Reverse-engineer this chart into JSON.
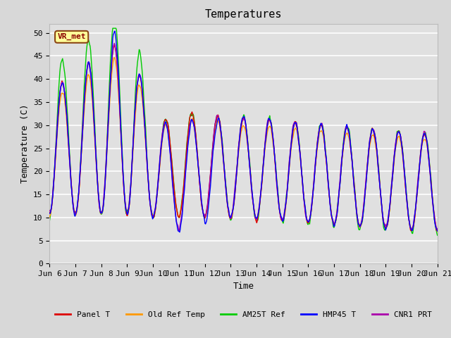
{
  "title": "Temperatures",
  "xlabel": "Time",
  "ylabel": "Temperature (C)",
  "ylim": [
    0,
    52
  ],
  "yticks": [
    0,
    5,
    10,
    15,
    20,
    25,
    30,
    35,
    40,
    45,
    50
  ],
  "x_labels": [
    "Jun 6",
    "Jun 7",
    "Jun 8",
    "Jun 9",
    "Jun 10",
    "Jun 11",
    "Jun 12",
    "Jun 13",
    "Jun 14",
    "Jun 15",
    "Jun 16",
    "Jun 17",
    "Jun 18",
    "Jun 19",
    "Jun 20",
    "Jun 21"
  ],
  "station_label": "VR_met",
  "legend_entries": [
    "Panel T",
    "Old Ref Temp",
    "AM25T Ref",
    "HMP45 T",
    "CNR1 PRT"
  ],
  "legend_colors": [
    "#dd0000",
    "#ff9900",
    "#00cc00",
    "#0000ff",
    "#aa00aa"
  ],
  "background_color": "#e0e0e0",
  "fig_background": "#d8d8d8",
  "grid_color": "#ffffff",
  "title_fontsize": 11,
  "label_fontsize": 9,
  "tick_fontsize": 8,
  "n_days": 15,
  "figsize": [
    6.4,
    4.8
  ],
  "dpi": 100
}
